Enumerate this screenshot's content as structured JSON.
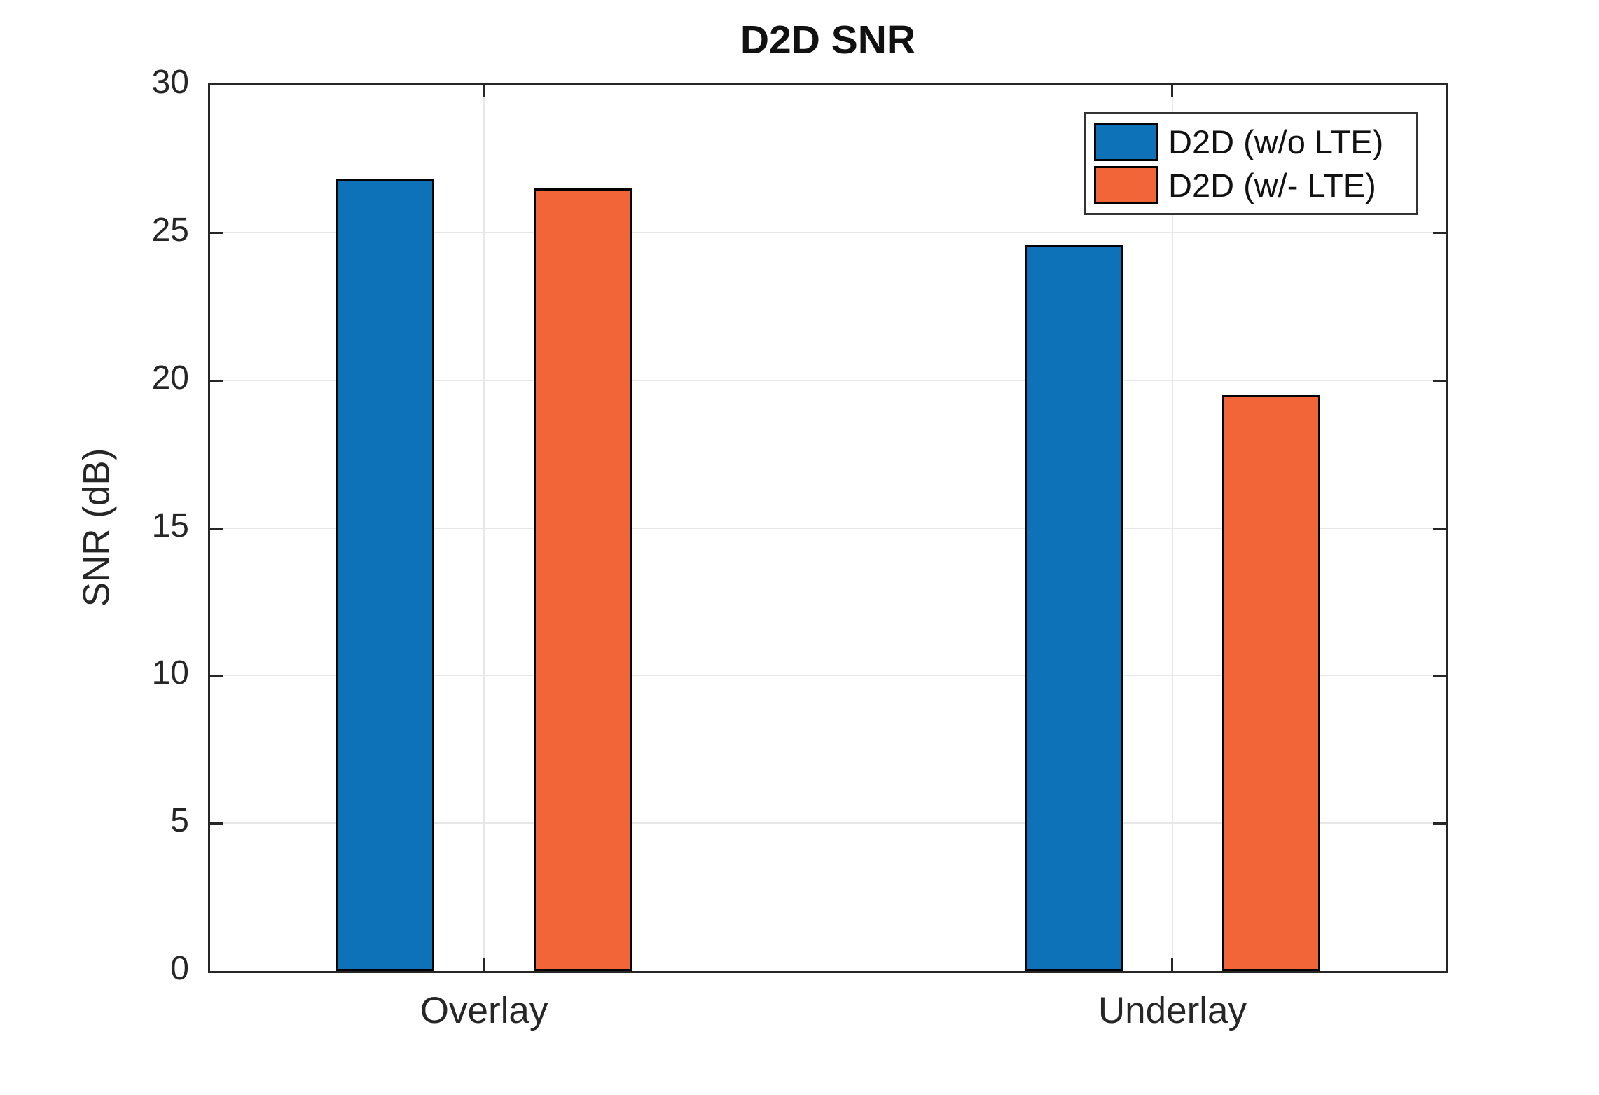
{
  "chart_data": {
    "type": "bar",
    "title": "D2D SNR",
    "xlabel": "",
    "ylabel": "SNR (dB)",
    "categories": [
      "Overlay",
      "Underlay"
    ],
    "series": [
      {
        "name": "D2D (w/o LTE)",
        "color": "#0D72B8",
        "values": [
          26.8,
          24.6
        ]
      },
      {
        "name": "D2D (w/- LTE)",
        "color": "#F26539",
        "values": [
          26.5,
          19.5
        ]
      }
    ],
    "ylim": [
      0,
      30
    ],
    "yticks": [
      0,
      5,
      10,
      15,
      20,
      25,
      30
    ],
    "grid": true,
    "legend_position": "top-right",
    "bar_edge_color": "#000000",
    "axis_color": "#262626",
    "grid_color": "#E7E7E7",
    "background_color": "#FFFFFF"
  }
}
